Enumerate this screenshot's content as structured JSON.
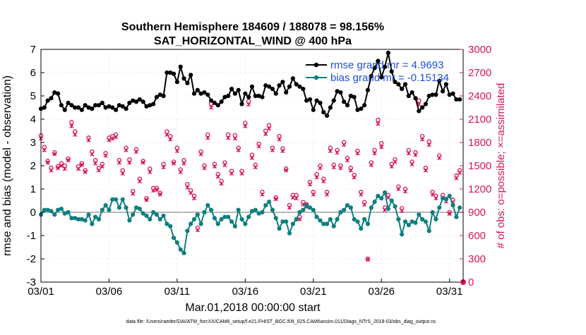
{
  "chart_data": {
    "type": "line",
    "title": "Southern Hemisphere 184609 / 188078 = 98.156%",
    "subtitle": "SAT_HORIZONTAL_WIND @ 400 hPa",
    "xlabel": "Mar.01,2018 00:00:00 start",
    "ylabel": "rmse and bias (model - observation)",
    "ylabel_right": "# of obs: o=possible; ×=assimilated",
    "footer": "data file: /Users/raeder/DAI/ATM_forcXX/CAM6_setup/f.e21.FHIST_BGC.f09_025.CAM6assim.011/Diags_NTrS_2018-03/obs_diag_output.nc",
    "xlim": [
      1,
      32
    ],
    "ylim": [
      -3,
      7
    ],
    "ylim_right": [
      0,
      3000
    ],
    "x_ticks": [
      {
        "value": 1,
        "label": "03/01"
      },
      {
        "value": 6,
        "label": "03/06"
      },
      {
        "value": 11,
        "label": "03/11"
      },
      {
        "value": 16,
        "label": "03/16"
      },
      {
        "value": 21,
        "label": "03/21"
      },
      {
        "value": 26,
        "label": "03/26"
      },
      {
        "value": 31,
        "label": "03/31"
      }
    ],
    "y_ticks": [
      -3,
      -2,
      -1,
      0,
      1,
      2,
      3,
      4,
      5,
      6,
      7
    ],
    "y_ticks_right": [
      0,
      300,
      600,
      900,
      1200,
      1500,
      1800,
      2100,
      2400,
      2700,
      3000
    ],
    "grid": true,
    "legend_position": "top-right",
    "colors": {
      "rmse": "#000000",
      "bias": "#0f7f7f",
      "counts": "#d6135b",
      "legend_text": "#1f4fd8",
      "zero_line": "#b8b8b8"
    },
    "series": [
      {
        "name": "rmse grand mr = 4.9693",
        "axis": "left",
        "x": [
          1.0,
          1.25,
          1.5,
          1.75,
          2.0,
          2.25,
          2.5,
          2.75,
          3.0,
          3.25,
          3.5,
          3.75,
          4.0,
          4.25,
          4.5,
          4.75,
          5.0,
          5.25,
          5.5,
          5.75,
          6.0,
          6.25,
          6.5,
          6.75,
          7.0,
          7.25,
          7.5,
          7.75,
          8.0,
          8.25,
          8.5,
          8.75,
          9.0,
          9.25,
          9.5,
          9.75,
          10.0,
          10.25,
          10.5,
          10.75,
          11.0,
          11.25,
          11.5,
          11.75,
          12.0,
          12.25,
          12.5,
          12.75,
          13.0,
          13.25,
          13.5,
          13.75,
          14.0,
          14.25,
          14.5,
          14.75,
          15.0,
          15.25,
          15.5,
          15.75,
          16.0,
          16.25,
          16.5,
          16.75,
          17.0,
          17.25,
          17.5,
          17.75,
          18.0,
          18.25,
          18.5,
          18.75,
          19.0,
          19.25,
          19.5,
          19.75,
          20.0,
          20.25,
          20.5,
          20.75,
          21.0,
          21.25,
          21.5,
          21.75,
          22.0,
          22.25,
          22.5,
          22.75,
          23.0,
          23.25,
          23.5,
          23.75,
          24.0,
          24.25,
          24.5,
          24.75,
          25.0,
          25.25,
          25.5,
          25.75,
          26.0,
          26.25,
          26.5,
          26.75,
          27.0,
          27.25,
          27.5,
          27.75,
          28.0,
          28.25,
          28.5,
          28.75,
          29.0,
          29.25,
          29.5,
          29.75,
          30.0,
          30.25,
          30.5,
          30.75,
          31.0,
          31.25,
          31.5,
          31.75
        ],
        "values": [
          4.45,
          4.5,
          4.8,
          4.9,
          5.15,
          5.1,
          4.6,
          4.4,
          4.7,
          4.6,
          4.5,
          4.5,
          4.4,
          4.6,
          4.5,
          4.45,
          4.6,
          4.6,
          4.7,
          4.5,
          4.55,
          4.5,
          4.4,
          4.6,
          4.55,
          4.45,
          4.7,
          4.8,
          4.75,
          4.85,
          4.75,
          4.55,
          4.6,
          4.65,
          4.95,
          5.05,
          5.0,
          6.0,
          6.0,
          5.95,
          5.6,
          6.25,
          5.75,
          5.55,
          5.9,
          5.1,
          5.25,
          5.1,
          5.15,
          5.05,
          4.8,
          4.7,
          4.6,
          4.75,
          4.95,
          5.0,
          5.3,
          5.1,
          5.25,
          4.65,
          5.1,
          4.95,
          5.4,
          5.0,
          5.0,
          4.95,
          5.45,
          5.4,
          5.3,
          5.1,
          5.45,
          5.6,
          5.15,
          5.4,
          5.75,
          5.5,
          5.4,
          5.3,
          4.8,
          4.85,
          4.4,
          4.8,
          4.7,
          4.3,
          4.15,
          4.5,
          4.8,
          5.2,
          5.15,
          4.75,
          4.6,
          5.0,
          4.95,
          4.4,
          4.45,
          4.6,
          5.25,
          5.85,
          6.2,
          6.5,
          5.8,
          6.25,
          6.85,
          6.05,
          5.6,
          5.5,
          5.3,
          5.5,
          5.0,
          5.15,
          4.9,
          4.35,
          4.5,
          4.65,
          5.0,
          5.05,
          5.05,
          5.65,
          5.2,
          5.5,
          5.05,
          5.1,
          4.85,
          4.85
        ]
      },
      {
        "name": "bias grand mr = -0.15134",
        "axis": "left",
        "x": [
          1.0,
          1.25,
          1.5,
          1.75,
          2.0,
          2.25,
          2.5,
          2.75,
          3.0,
          3.25,
          3.5,
          3.75,
          4.0,
          4.25,
          4.5,
          4.75,
          5.0,
          5.25,
          5.5,
          5.75,
          6.0,
          6.25,
          6.5,
          6.75,
          7.0,
          7.25,
          7.5,
          7.75,
          8.0,
          8.25,
          8.5,
          8.75,
          9.0,
          9.25,
          9.5,
          9.75,
          10.0,
          10.25,
          10.5,
          10.75,
          11.0,
          11.25,
          11.5,
          11.75,
          12.0,
          12.25,
          12.5,
          12.75,
          13.0,
          13.25,
          13.5,
          13.75,
          14.0,
          14.25,
          14.5,
          14.75,
          15.0,
          15.25,
          15.5,
          15.75,
          16.0,
          16.25,
          16.5,
          16.75,
          17.0,
          17.25,
          17.5,
          17.75,
          18.0,
          18.25,
          18.5,
          18.75,
          19.0,
          19.25,
          19.5,
          19.75,
          20.0,
          20.25,
          20.5,
          20.75,
          21.0,
          21.25,
          21.5,
          21.75,
          22.0,
          22.25,
          22.5,
          22.75,
          23.0,
          23.25,
          23.5,
          23.75,
          24.0,
          24.25,
          24.5,
          24.75,
          25.0,
          25.25,
          25.5,
          25.75,
          26.0,
          26.25,
          26.5,
          26.75,
          27.0,
          27.25,
          27.5,
          27.75,
          28.0,
          28.25,
          28.5,
          28.75,
          29.0,
          29.25,
          29.5,
          29.75,
          30.0,
          30.25,
          30.5,
          30.75,
          31.0,
          31.25,
          31.5,
          31.75
        ],
        "values": [
          -0.1,
          0.1,
          0.1,
          0.05,
          -0.1,
          0.1,
          0.15,
          -0.05,
          0.0,
          -0.25,
          -0.25,
          -0.3,
          -0.3,
          -0.35,
          -0.1,
          -0.5,
          -0.2,
          -0.3,
          0.1,
          0.3,
          0.1,
          0.55,
          0.55,
          0.2,
          0.55,
          0.2,
          -0.35,
          -0.1,
          0.2,
          0.15,
          -0.05,
          -0.15,
          -0.3,
          0.0,
          -0.1,
          -0.3,
          -0.15,
          -0.5,
          -0.6,
          -1.1,
          -1.3,
          -1.6,
          -1.75,
          -0.8,
          -0.5,
          -0.3,
          -0.1,
          -0.5,
          0.0,
          0.3,
          0.1,
          -0.25,
          -0.5,
          -0.3,
          -0.2,
          -0.2,
          -0.4,
          -0.6,
          0.1,
          -0.3,
          -0.5,
          -0.2,
          0.05,
          0.1,
          -0.05,
          0.0,
          0.3,
          0.45,
          0.1,
          -0.25,
          -0.7,
          -0.4,
          -0.4,
          -0.9,
          -0.5,
          -0.3,
          0.0,
          0.1,
          0.3,
          0.2,
          0.1,
          -0.2,
          -0.35,
          -0.5,
          -0.5,
          -0.3,
          -0.6,
          -0.3,
          0.0,
          0.1,
          0.3,
          0.2,
          -0.3,
          -0.4,
          -0.7,
          -0.3,
          -0.5,
          0.2,
          0.45,
          0.7,
          0.6,
          0.85,
          0.15,
          0.5,
          0.25,
          -0.3,
          -0.95,
          -0.4,
          -0.55,
          -0.4,
          -0.45,
          -0.1,
          -0.3,
          -0.4,
          -0.8,
          0.0,
          -0.3,
          0.2,
          0.6,
          0.55,
          0.7,
          0.3,
          -0.2,
          0.2
        ]
      },
      {
        "name": "possible",
        "axis": "right",
        "marker": "o",
        "x": [
          1.0,
          1.25,
          1.5,
          1.75,
          2.0,
          2.25,
          2.5,
          2.75,
          3.0,
          3.25,
          3.5,
          3.75,
          4.0,
          4.25,
          4.5,
          4.75,
          5.0,
          5.25,
          5.5,
          5.75,
          6.0,
          6.25,
          6.5,
          6.75,
          7.0,
          7.25,
          7.5,
          7.75,
          8.0,
          8.25,
          8.5,
          8.75,
          9.0,
          9.25,
          9.5,
          9.75,
          10.0,
          10.25,
          10.5,
          10.75,
          11.0,
          11.25,
          11.5,
          11.75,
          12.0,
          12.25,
          12.5,
          12.75,
          13.0,
          13.25,
          13.5,
          13.75,
          14.0,
          14.25,
          14.5,
          14.75,
          15.0,
          15.25,
          15.5,
          15.75,
          16.0,
          16.25,
          16.5,
          16.75,
          17.0,
          17.25,
          17.5,
          17.75,
          18.0,
          18.25,
          18.5,
          18.75,
          19.0,
          19.25,
          19.5,
          19.75,
          20.0,
          20.25,
          20.5,
          20.75,
          21.0,
          21.25,
          21.5,
          21.75,
          22.0,
          22.25,
          22.5,
          22.75,
          23.0,
          23.25,
          23.5,
          23.75,
          24.0,
          24.25,
          24.5,
          24.75,
          25.0,
          25.25,
          25.5,
          25.75,
          26.0,
          26.25,
          26.5,
          26.75,
          27.0,
          27.25,
          27.5,
          27.75,
          28.0,
          28.25,
          28.5,
          28.75,
          29.0,
          29.25,
          29.5,
          29.75,
          30.0,
          30.25,
          30.5,
          30.75,
          31.0,
          31.25,
          31.5,
          31.75
        ],
        "values": [
          1890,
          1740,
          1560,
          1470,
          1670,
          1490,
          1530,
          1500,
          1590,
          2060,
          1940,
          1490,
          1530,
          1440,
          1860,
          1680,
          1570,
          1470,
          1520,
          1660,
          1860,
          1880,
          1900,
          1570,
          1440,
          1730,
          1580,
          1170,
          1710,
          1330,
          1560,
          1080,
          1460,
          1210,
          1210,
          1150,
          1520,
          1940,
          1880,
          1550,
          1730,
          1450,
          1570,
          1260,
          1180,
          1110,
          700,
          1680,
          1500,
          1900,
          2300,
          1520,
          1390,
          1300,
          1540,
          1900,
          1430,
          1890,
          1730,
          1430,
          2050,
          2330,
          1640,
          1510,
          1780,
          1160,
          1950,
          2020,
          1730,
          1090,
          1880,
          1720,
          1460,
          990,
          1120,
          1120,
          840,
          1030,
          1000,
          1290,
          1160,
          1390,
          1500,
          1330,
          1160,
          1730,
          1510,
          1700,
          1500,
          1800,
          1600,
          1470,
          1380,
          1690,
          1160,
          1030,
          300,
          1540,
          1700,
          2090,
          1790,
          960,
          1120,
          1520,
          1580,
          1230,
          950,
          1200,
          1700,
          1550,
          1670,
          2340,
          1880,
          1470,
          1810,
          1160,
          1110,
          1630,
          1120,
          1070,
          900,
          1060,
          1370,
          1440
        ]
      },
      {
        "name": "assimilated",
        "axis": "right",
        "marker": "x",
        "x": [
          1.0,
          1.25,
          1.5,
          1.75,
          2.0,
          2.25,
          2.5,
          2.75,
          3.0,
          3.25,
          3.5,
          3.75,
          4.0,
          4.25,
          4.5,
          4.75,
          5.0,
          5.25,
          5.5,
          5.75,
          6.0,
          6.25,
          6.5,
          6.75,
          7.0,
          7.25,
          7.5,
          7.75,
          8.0,
          8.25,
          8.5,
          8.75,
          9.0,
          9.25,
          9.5,
          9.75,
          10.0,
          10.25,
          10.5,
          10.75,
          11.0,
          11.25,
          11.5,
          11.75,
          12.0,
          12.25,
          12.5,
          12.75,
          13.0,
          13.25,
          13.5,
          13.75,
          14.0,
          14.25,
          14.5,
          14.75,
          15.0,
          15.25,
          15.5,
          15.75,
          16.0,
          16.25,
          16.5,
          16.75,
          17.0,
          17.25,
          17.5,
          17.75,
          18.0,
          18.25,
          18.5,
          18.75,
          19.0,
          19.25,
          19.5,
          19.75,
          20.0,
          20.25,
          20.5,
          20.75,
          21.0,
          21.25,
          21.5,
          21.75,
          22.0,
          22.25,
          22.5,
          22.75,
          23.0,
          23.25,
          23.5,
          23.75,
          24.0,
          24.25,
          24.5,
          24.75,
          25.0,
          25.25,
          25.5,
          25.75,
          26.0,
          26.25,
          26.5,
          26.75,
          27.0,
          27.25,
          27.5,
          27.75,
          28.0,
          28.25,
          28.5,
          28.75,
          29.0,
          29.25,
          29.5,
          29.75,
          30.0,
          30.25,
          30.5,
          30.75,
          31.0,
          31.25,
          31.5,
          31.75
        ],
        "values": [
          1850,
          1700,
          1540,
          1440,
          1650,
          1470,
          1500,
          1460,
          1570,
          2010,
          1900,
          1460,
          1510,
          1420,
          1830,
          1650,
          1530,
          1440,
          1490,
          1630,
          1830,
          1850,
          1870,
          1540,
          1400,
          1700,
          1540,
          1140,
          1680,
          1300,
          1540,
          1060,
          1420,
          1180,
          1190,
          1130,
          1480,
          1900,
          1840,
          1530,
          1690,
          1420,
          1530,
          1220,
          1150,
          1080,
          670,
          1650,
          1470,
          1860,
          2250,
          1490,
          1360,
          1270,
          1510,
          1860,
          1400,
          1850,
          1700,
          1400,
          2010,
          2290,
          1600,
          1480,
          1750,
          1130,
          1910,
          1980,
          1700,
          1070,
          1840,
          1690,
          1440,
          960,
          1090,
          1080,
          810,
          1000,
          970,
          1260,
          1130,
          1350,
          1470,
          1300,
          1130,
          1690,
          1480,
          1670,
          1470,
          1770,
          1570,
          1440,
          1350,
          1660,
          1130,
          1000,
          290,
          1510,
          1660,
          2040,
          1740,
          930,
          1090,
          1490,
          1550,
          1200,
          920,
          1170,
          1660,
          1520,
          1640,
          2290,
          1840,
          1440,
          1770,
          1130,
          1080,
          1600,
          1090,
          1040,
          880,
          1030,
          1340,
          1410
        ]
      }
    ],
    "annotations": [
      {
        "name": "zero-count-point",
        "x": 32,
        "y_right": 0
      }
    ]
  }
}
